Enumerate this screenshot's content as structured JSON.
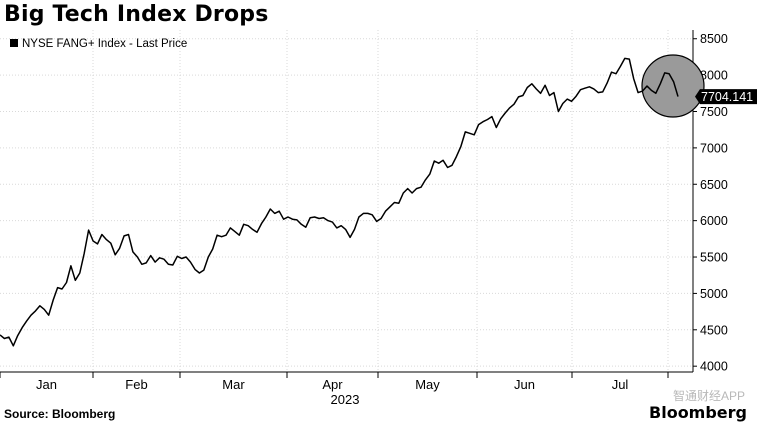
{
  "header": {
    "title": "Big Tech Index Drops"
  },
  "footer": {
    "source": "Source: Bloomberg",
    "brand": "Bloomberg",
    "watermark": "智通财经APP"
  },
  "chart_data": {
    "type": "line",
    "legend_label": "NYSE FANG+ Index - Last Price",
    "legend_placement": "top-left",
    "last_value_label": "7704.141",
    "year_label": "2023",
    "x_tick_labels": [
      "Jan",
      "Feb",
      "Mar",
      "Apr",
      "May",
      "Jun",
      "Jul"
    ],
    "y_tick_labels": [
      "4000",
      "4500",
      "5000",
      "5500",
      "6000",
      "6500",
      "7000",
      "7500",
      "8000",
      "8500"
    ],
    "ylim": [
      3920,
      8620
    ],
    "y_axis_side": "right",
    "grid": true,
    "highlight_circle": true,
    "series": [
      {
        "values": [
          4430,
          4380,
          4400,
          4280,
          4420,
          4530,
          4620,
          4700,
          4760,
          4830,
          4780,
          4700,
          4910,
          5080,
          5060,
          5150,
          5380,
          5180,
          5280,
          5550,
          5870,
          5720,
          5680,
          5810,
          5740,
          5690,
          5530,
          5620,
          5790,
          5810,
          5570,
          5500,
          5400,
          5420,
          5520,
          5430,
          5490,
          5470,
          5400,
          5390,
          5510,
          5480,
          5500,
          5430,
          5330,
          5280,
          5320,
          5500,
          5610,
          5800,
          5780,
          5800,
          5900,
          5850,
          5800,
          5950,
          5930,
          5880,
          5840,
          5960,
          6050,
          6160,
          6100,
          6130,
          6020,
          6050,
          6020,
          6010,
          5950,
          5910,
          6040,
          6050,
          6030,
          6040,
          6000,
          5980,
          5900,
          5930,
          5880,
          5770,
          5880,
          6050,
          6100,
          6100,
          6080,
          5990,
          6030,
          6130,
          6190,
          6250,
          6240,
          6380,
          6440,
          6380,
          6440,
          6460,
          6560,
          6640,
          6820,
          6790,
          6830,
          6730,
          6760,
          6880,
          7020,
          7220,
          7200,
          7180,
          7320,
          7360,
          7390,
          7430,
          7280,
          7400,
          7480,
          7550,
          7600,
          7700,
          7720,
          7830,
          7880,
          7810,
          7750,
          7860,
          7720,
          7760,
          7500,
          7610,
          7670,
          7640,
          7710,
          7800,
          7820,
          7840,
          7810,
          7760,
          7770,
          7890,
          8040,
          8020,
          8120,
          8230,
          8220,
          7950,
          7760,
          7780,
          7850,
          7790,
          7750,
          7880,
          8030,
          8020,
          7910,
          7704.141
        ]
      }
    ]
  }
}
